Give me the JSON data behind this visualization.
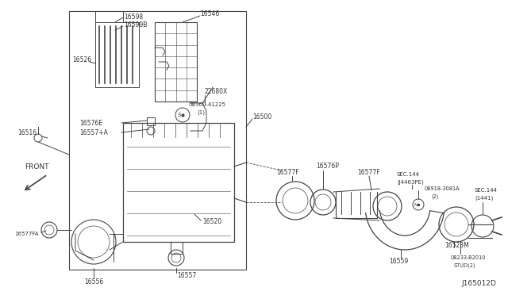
{
  "bg_color": "#ffffff",
  "line_color": "#444444",
  "label_color": "#333333",
  "diagram_id": "J165012D",
  "figsize": [
    6.4,
    3.72
  ],
  "dpi": 100,
  "xlim": [
    0,
    640
  ],
  "ylim": [
    0,
    372
  ]
}
